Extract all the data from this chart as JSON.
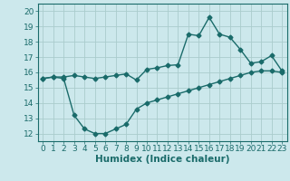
{
  "xlabel": "Humidex (Indice chaleur)",
  "background_color": "#cce8ec",
  "grid_color": "#aacccc",
  "line_color": "#1a6b6a",
  "x_values": [
    0,
    1,
    2,
    3,
    4,
    5,
    6,
    7,
    8,
    9,
    10,
    11,
    12,
    13,
    14,
    15,
    16,
    17,
    18,
    19,
    20,
    21,
    22,
    23
  ],
  "line1_y": [
    15.6,
    15.7,
    15.7,
    15.8,
    15.7,
    15.6,
    15.7,
    15.8,
    15.9,
    15.5,
    16.2,
    16.3,
    16.45,
    16.5,
    18.5,
    18.4,
    19.6,
    18.5,
    18.3,
    17.5,
    16.6,
    16.7,
    17.1,
    16.1
  ],
  "line2_y": [
    15.6,
    15.7,
    15.6,
    13.2,
    12.3,
    12.0,
    12.0,
    12.3,
    12.6,
    13.6,
    14.0,
    14.2,
    14.4,
    14.6,
    14.8,
    15.0,
    15.2,
    15.4,
    15.6,
    15.8,
    16.0,
    16.1,
    16.1,
    16.0
  ],
  "xlim": [
    -0.5,
    23.5
  ],
  "ylim": [
    11.5,
    20.5
  ],
  "yticks": [
    12,
    13,
    14,
    15,
    16,
    17,
    18,
    19,
    20
  ],
  "xticks": [
    0,
    1,
    2,
    3,
    4,
    5,
    6,
    7,
    8,
    9,
    10,
    11,
    12,
    13,
    14,
    15,
    16,
    17,
    18,
    19,
    20,
    21,
    22,
    23
  ],
  "tick_fontsize": 6.5,
  "xlabel_fontsize": 7.5,
  "marker_size": 2.5,
  "line_width": 1.0
}
